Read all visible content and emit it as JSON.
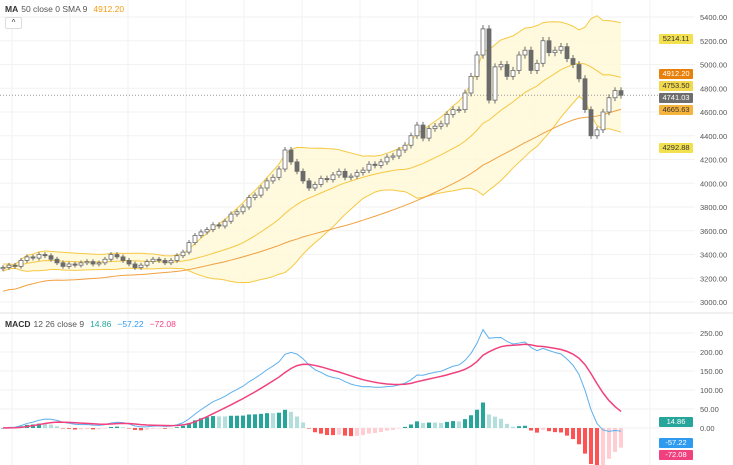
{
  "price_legend": {
    "name": "MA",
    "params": "50 close 0 SMA 9",
    "value": "4912.20",
    "value_color": "#f39c12"
  },
  "collapse_label": "^",
  "macd_legend": {
    "name": "MACD",
    "params": "12 26 close 9",
    "hist": "14.86",
    "macd": "−57.22",
    "signal": "−72.08"
  },
  "colors": {
    "up_fill": "#ffffff",
    "candle": "#6b6b6b",
    "bb_line": "#f5c842",
    "bb_fill": "#fff8d6",
    "ma": "#f0a040",
    "macd": "#5eb0ee",
    "signal": "#f0417e",
    "hist_up": "#26a69a",
    "hist_up_light": "#b2dfdb",
    "hist_down": "#ff5252",
    "hist_down_light": "#ffcdd2"
  },
  "chart_data": [
    {
      "type": "candlestick",
      "ylim": [
        2900,
        5500
      ],
      "y_ticks": [
        "5400.00",
        "5200.00",
        "5000.00",
        "4800.00",
        "4600.00",
        "4400.00",
        "4200.00",
        "4000.00",
        "3800.00",
        "3600.00",
        "3400.00",
        "3200.00",
        "3000.00"
      ],
      "close": [
        3290,
        3310,
        3300,
        3350,
        3380,
        3370,
        3400,
        3390,
        3360,
        3330,
        3300,
        3320,
        3310,
        3330,
        3340,
        3320,
        3330,
        3360,
        3400,
        3380,
        3350,
        3320,
        3290,
        3310,
        3340,
        3360,
        3350,
        3330,
        3350,
        3390,
        3420,
        3500,
        3560,
        3590,
        3610,
        3650,
        3640,
        3680,
        3740,
        3760,
        3800,
        3880,
        3900,
        3960,
        4020,
        4050,
        4120,
        4280,
        4180,
        4100,
        4020,
        3960,
        3990,
        4040,
        4030,
        4070,
        4100,
        4050,
        4060,
        4090,
        4110,
        4160,
        4150,
        4180,
        4220,
        4230,
        4280,
        4320,
        4400,
        4490,
        4380,
        4460,
        4480,
        4500,
        4580,
        4620,
        4620,
        4760,
        4900,
        5080,
        5300,
        4700,
        4980,
        5000,
        4900,
        4950,
        5080,
        5120,
        4950,
        5010,
        5200,
        5100,
        5120,
        5150,
        5050,
        5000,
        4880,
        4620,
        4400,
        4450,
        4600,
        4720,
        4780,
        4741
      ],
      "price_labels": [
        {
          "text": "5214.11",
          "bg": "#f3e04e",
          "fg": "#333",
          "price": 5214.11
        },
        {
          "text": "4912.20",
          "bg": "#e8800c",
          "fg": "#fff",
          "price": 4912.2
        },
        {
          "text": "4753.50",
          "bg": "#f2d84c",
          "fg": "#333",
          "price": 4753.5
        },
        {
          "text": "4741.03",
          "bg": "#6e6e6e",
          "fg": "#fff",
          "price": 4741.03
        },
        {
          "text": "4665.63",
          "bg": "#f7b43c",
          "fg": "#333",
          "price": 4665.63
        },
        {
          "text": "4292.88",
          "bg": "#f3e04e",
          "fg": "#333",
          "price": 4292.88
        }
      ]
    },
    {
      "type": "macd",
      "ylim": [
        -100,
        270
      ],
      "y_ticks": [
        "250.00",
        "200.00",
        "150.00",
        "100.00",
        "50.00",
        "0.00"
      ],
      "labels": [
        {
          "text": "14.86",
          "bg": "#26a69a",
          "fg": "#fff",
          "value": 14.86
        },
        {
          "text": "-57.22",
          "bg": "#2f9bf0",
          "fg": "#fff",
          "value": -57.22
        },
        {
          "text": "-72.08",
          "bg": "#f0417e",
          "fg": "#fff",
          "value": -72.08
        }
      ]
    }
  ]
}
